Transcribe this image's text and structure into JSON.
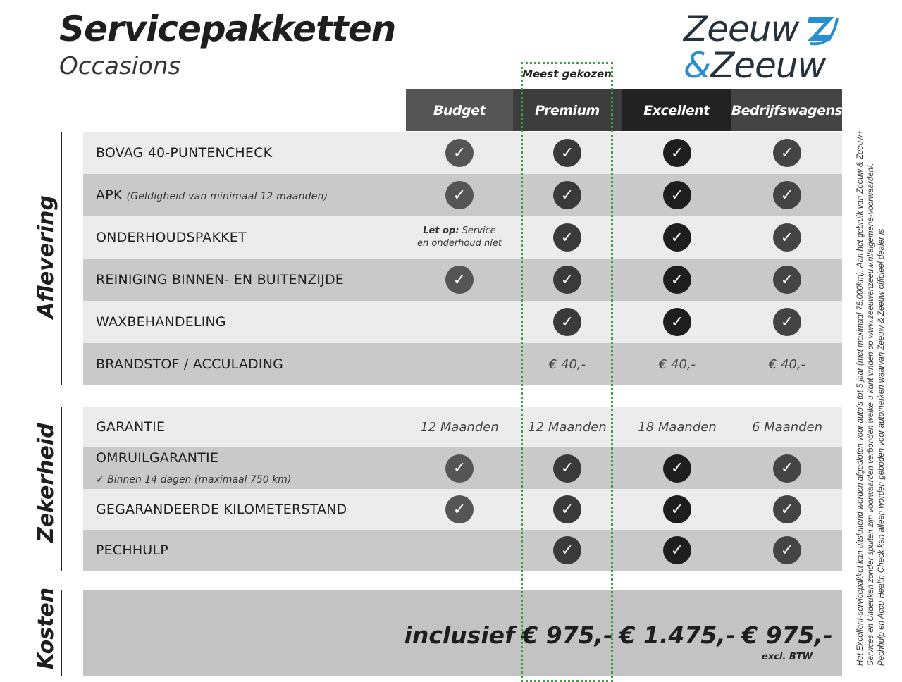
{
  "header": {
    "title": "Servicepakketten",
    "subtitle": "Occasions"
  },
  "logo": {
    "line1": "Zeeuw",
    "line2_amp": "&",
    "line2": "Zeeuw",
    "colors": {
      "text": "#26313b",
      "accent": "#2a8fd0"
    }
  },
  "highlight": {
    "label": "Meest gekozen",
    "color": "#3aa23a"
  },
  "columns": [
    {
      "name": "Budget",
      "bg": "#555555",
      "check": "#555555"
    },
    {
      "name": "Premium",
      "bg": "#3d3d3d",
      "check": "#3a3a3a"
    },
    {
      "name": "Excellent",
      "bg": "#222222",
      "check": "#1e1e1e"
    },
    {
      "name": "Bedrijfswagens",
      "bg": "#444444",
      "check": "#444444"
    }
  ],
  "sections": [
    {
      "label": "Aflevering",
      "rows": [
        {
          "label": "BOVAG 40-PUNTENCHECK",
          "cells": [
            "check",
            "check",
            "check",
            "check"
          ]
        },
        {
          "label": "APK",
          "sub": "(Geldigheid van minimaal 12 maanden)",
          "cells": [
            "check",
            "check",
            "check",
            "check"
          ]
        },
        {
          "label": "ONDERHOUDSPAKKET",
          "cells": [
            "note",
            "check",
            "check",
            "check"
          ],
          "note_bold": "Let op:",
          "note_text": " Service en onderhoud niet"
        },
        {
          "label": "REINIGING BINNEN- EN BUITENZIJDE",
          "cells": [
            "check",
            "check",
            "check",
            "check"
          ]
        },
        {
          "label": "WAXBEHANDELING",
          "cells": [
            "",
            "check",
            "check",
            "check"
          ]
        },
        {
          "label": "BRANDSTOF / ACCULADING",
          "cells": [
            "",
            "€ 40,-",
            "€ 40,-",
            "€ 40,-"
          ]
        }
      ]
    },
    {
      "label": "Zekerheid",
      "rows": [
        {
          "label": "GARANTIE",
          "cells": [
            "12 Maanden",
            "12 Maanden",
            "18 Maanden",
            "6 Maanden"
          ]
        },
        {
          "label": "OMRUILGARANTIE",
          "note": "✓   Binnen 14 dagen (maximaal 750 km)",
          "cells": [
            "check",
            "check",
            "check",
            "check"
          ]
        },
        {
          "label": "GEGARANDEERDE KILOMETERSTAND",
          "cells": [
            "check",
            "check",
            "check",
            "check"
          ]
        },
        {
          "label": "PECHHULP",
          "cells": [
            "",
            "check",
            "check",
            "check"
          ]
        }
      ]
    },
    {
      "label": "Kosten",
      "prices": [
        "inclusief",
        "€ 975,-",
        "€ 1.475,-",
        "€ 975,-"
      ],
      "price_note": "excl. BTW"
    }
  ],
  "disclaimer": [
    "Het Excellent-servicepakket kan uitsluitend worden afgesloten voor auto's tot 5 jaar (met maximaal 75.000km). Aan het gebruik van Zeeuw & Zeeuw+",
    "Services en Uitdeuken zonder spuiten zijn voorwaarden verbonden welke u kunt vinden op www.zeeuwenzeeuw.nl/algemene-voorwaarden/.",
    "Pechhulp en Accu Health Check kan alleen worden geboden voor automerken waarvan Zeeuw & Zeeuw officieel dealer is."
  ]
}
